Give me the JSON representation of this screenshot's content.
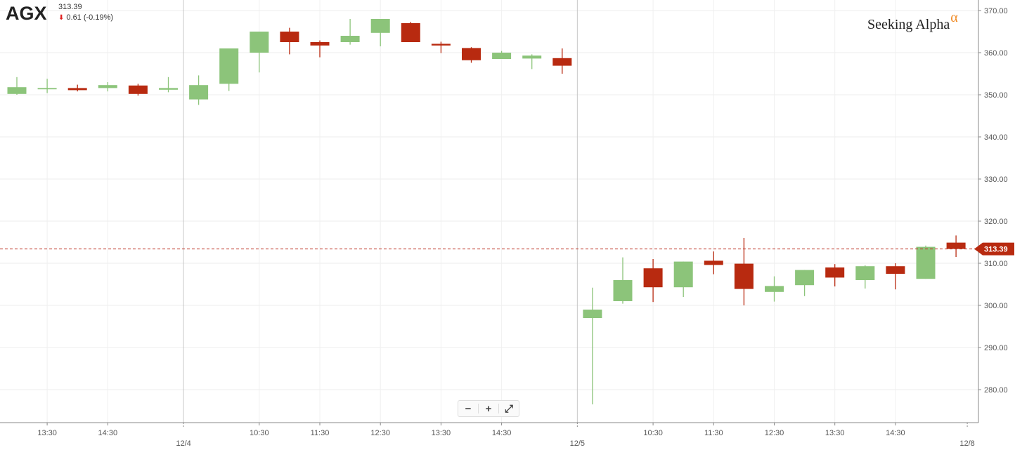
{
  "header": {
    "ticker": "AGX",
    "price": "313.39",
    "change": "0.61 (-0.19%)",
    "change_direction": "down"
  },
  "brand": {
    "name": "Seeking Alpha",
    "alpha_symbol": "α",
    "alpha_color": "#f08a24"
  },
  "zoom_controls": {
    "minus": "−",
    "plus": "+",
    "fullscreen": "⤢"
  },
  "colors": {
    "up": "#8cc47a",
    "down": "#b82a10",
    "last_price_line": "#c0392b"
  },
  "chart_data": {
    "type": "candlestick",
    "title": "",
    "xlabel": "",
    "ylabel": "",
    "ylim": [
      271,
      372
    ],
    "yticks": [
      280,
      290,
      300,
      310,
      320,
      330,
      340,
      350,
      360,
      370
    ],
    "ytick_labels": [
      "280.00",
      "290.00",
      "300.00",
      "310.00",
      "320.00",
      "330.00",
      "340.00",
      "350.00",
      "360.00",
      "370.00"
    ],
    "x_tick_labels": [
      {
        "i": 1,
        "label": "13:30"
      },
      {
        "i": 3,
        "label": "14:30"
      },
      {
        "i": 8,
        "label": "10:30"
      },
      {
        "i": 10,
        "label": "11:30"
      },
      {
        "i": 12,
        "label": "12:30"
      },
      {
        "i": 14,
        "label": "13:30"
      },
      {
        "i": 16,
        "label": "14:30"
      },
      {
        "i": 21,
        "label": "10:30"
      },
      {
        "i": 23,
        "label": "11:30"
      },
      {
        "i": 25,
        "label": "12:30"
      },
      {
        "i": 27,
        "label": "13:30"
      },
      {
        "i": 29,
        "label": "14:30"
      }
    ],
    "day_labels": [
      {
        "after": 5,
        "label": "12/4"
      },
      {
        "after": 18,
        "label": "12/5"
      },
      {
        "after": 31,
        "label": "12/8"
      }
    ],
    "last_price": 313.39,
    "last_price_label": "313.39",
    "candles": [
      {
        "o": 350.2,
        "h": 354.2,
        "l": 350.0,
        "c": 351.8
      },
      {
        "o": 351.3,
        "h": 353.8,
        "l": 350.4,
        "c": 351.6
      },
      {
        "o": 351.6,
        "h": 352.4,
        "l": 350.8,
        "c": 351.1
      },
      {
        "o": 351.6,
        "h": 353.0,
        "l": 350.8,
        "c": 352.3
      },
      {
        "o": 352.2,
        "h": 352.6,
        "l": 349.8,
        "c": 350.2
      },
      {
        "o": 351.2,
        "h": 354.2,
        "l": 350.6,
        "c": 351.6
      },
      {
        "o": 348.9,
        "h": 354.6,
        "l": 347.6,
        "c": 352.3
      },
      {
        "o": 352.6,
        "h": 361.0,
        "l": 350.9,
        "c": 361.0
      },
      {
        "o": 360.0,
        "h": 365.0,
        "l": 355.3,
        "c": 365.0
      },
      {
        "o": 365.0,
        "h": 365.9,
        "l": 359.6,
        "c": 362.5
      },
      {
        "o": 362.5,
        "h": 362.9,
        "l": 358.9,
        "c": 361.7
      },
      {
        "o": 362.5,
        "h": 368.0,
        "l": 361.9,
        "c": 364.0
      },
      {
        "o": 364.7,
        "h": 368.0,
        "l": 361.5,
        "c": 368.0
      },
      {
        "o": 367.0,
        "h": 367.3,
        "l": 362.5,
        "c": 362.5
      },
      {
        "o": 362.1,
        "h": 362.6,
        "l": 359.9,
        "c": 361.7
      },
      {
        "o": 361.1,
        "h": 361.3,
        "l": 357.6,
        "c": 358.2
      },
      {
        "o": 358.5,
        "h": 360.4,
        "l": 358.5,
        "c": 360.0
      },
      {
        "o": 358.6,
        "h": 359.6,
        "l": 356.1,
        "c": 359.3
      },
      {
        "o": 358.7,
        "h": 361.0,
        "l": 355.0,
        "c": 356.9
      },
      {
        "o": 297.0,
        "h": 304.2,
        "l": 276.5,
        "c": 299.0
      },
      {
        "o": 301.0,
        "h": 311.4,
        "l": 300.4,
        "c": 306.0
      },
      {
        "o": 308.8,
        "h": 311.0,
        "l": 300.8,
        "c": 304.3
      },
      {
        "o": 304.3,
        "h": 310.4,
        "l": 302.0,
        "c": 310.4
      },
      {
        "o": 310.6,
        "h": 312.8,
        "l": 307.4,
        "c": 309.6
      },
      {
        "o": 309.9,
        "h": 316.0,
        "l": 300.0,
        "c": 303.9
      },
      {
        "o": 303.2,
        "h": 306.9,
        "l": 300.9,
        "c": 304.6
      },
      {
        "o": 304.8,
        "h": 308.4,
        "l": 302.2,
        "c": 308.4
      },
      {
        "o": 309.0,
        "h": 309.8,
        "l": 304.5,
        "c": 306.6
      },
      {
        "o": 306.0,
        "h": 309.5,
        "l": 304.0,
        "c": 309.3
      },
      {
        "o": 309.3,
        "h": 310.0,
        "l": 303.8,
        "c": 307.5
      },
      {
        "o": 306.3,
        "h": 314.2,
        "l": 306.3,
        "c": 313.9
      },
      {
        "o": 314.9,
        "h": 316.6,
        "l": 311.5,
        "c": 313.4
      }
    ]
  }
}
